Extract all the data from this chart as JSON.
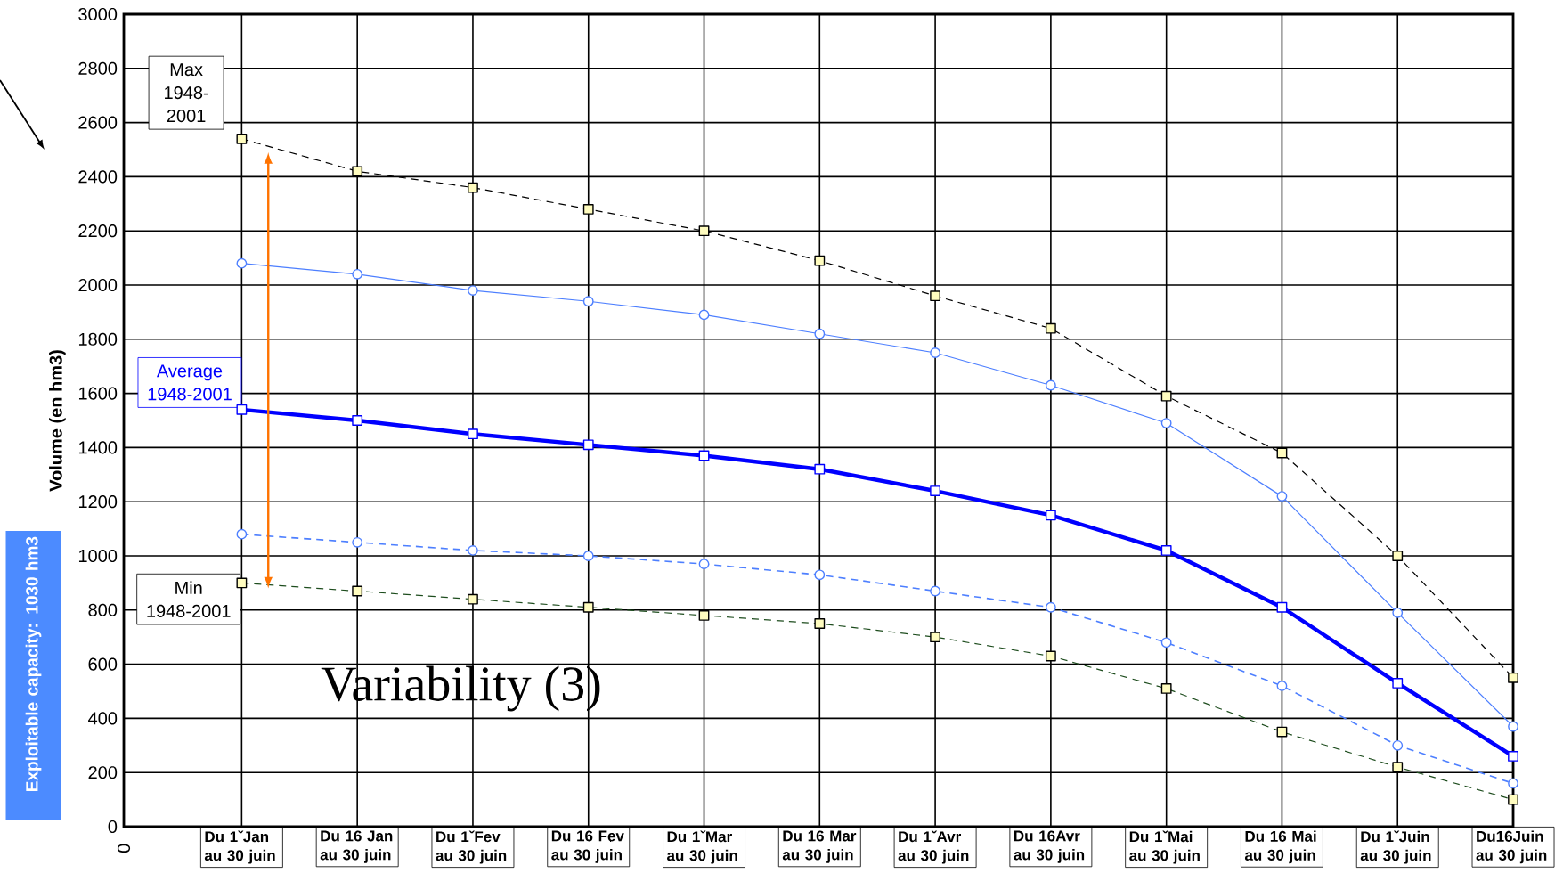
{
  "chart_data": {
    "type": "line",
    "ylabel": "Volume (en hm3)",
    "categories": [
      "Du 1ˇJan au 30 juin",
      "Du 16 Jan au 30 juin",
      "Du 1ˇFev au 30 juin",
      "Du 16 Fev au 30 juin",
      "Du 1ˇMar au 30 juin",
      "Du 16 Mar au 30 juin",
      "Du 1ˇAvr au 30 juin",
      "Du 16Avr au 30 juin",
      "Du 1ˇMai au 30 juin",
      "Du 16 Mai au 30 juin",
      "Du 1ˇJuin au 30 juin",
      "Du16Juin au 30 juin"
    ],
    "series": [
      {
        "name": "Max 1948-2001",
        "color": "#000000",
        "marker": "square",
        "line_style": "dashed",
        "values": [
          2540,
          2420,
          2360,
          2280,
          2200,
          2090,
          1960,
          1840,
          1590,
          1380,
          1000,
          550
        ]
      },
      {
        "color": "#4d7fff",
        "marker": "circle",
        "line_style": "solid",
        "values": [
          2080,
          2040,
          1980,
          1940,
          1890,
          1820,
          1750,
          1630,
          1490,
          1220,
          790,
          370
        ]
      },
      {
        "name": "Average 1948-2001",
        "color": "#0000ff",
        "marker": "square",
        "line_style": "solid",
        "values": [
          1540,
          1500,
          1450,
          1410,
          1370,
          1320,
          1240,
          1150,
          1020,
          810,
          530,
          260
        ]
      },
      {
        "color": "#4d7fff",
        "marker": "circle",
        "line_style": "dashed",
        "values": [
          1080,
          1050,
          1020,
          1000,
          970,
          930,
          870,
          810,
          680,
          520,
          300,
          160
        ]
      },
      {
        "name": "Min 1948-2001",
        "color": "#1e4d1e",
        "marker": "square",
        "line_style": "dashed",
        "values": [
          900,
          870,
          840,
          810,
          780,
          750,
          700,
          630,
          510,
          350,
          220,
          100
        ]
      }
    ],
    "ylim": [
      0,
      3000
    ],
    "yticks": [
      0,
      200,
      400,
      600,
      800,
      1000,
      1200,
      1400,
      1600,
      1800,
      2000,
      2200,
      2400,
      2600,
      2800,
      3000
    ],
    "grid": true,
    "annotations": [
      "Variability (3)",
      "0",
      "Exploitable capacity: 1030 hm3"
    ]
  }
}
